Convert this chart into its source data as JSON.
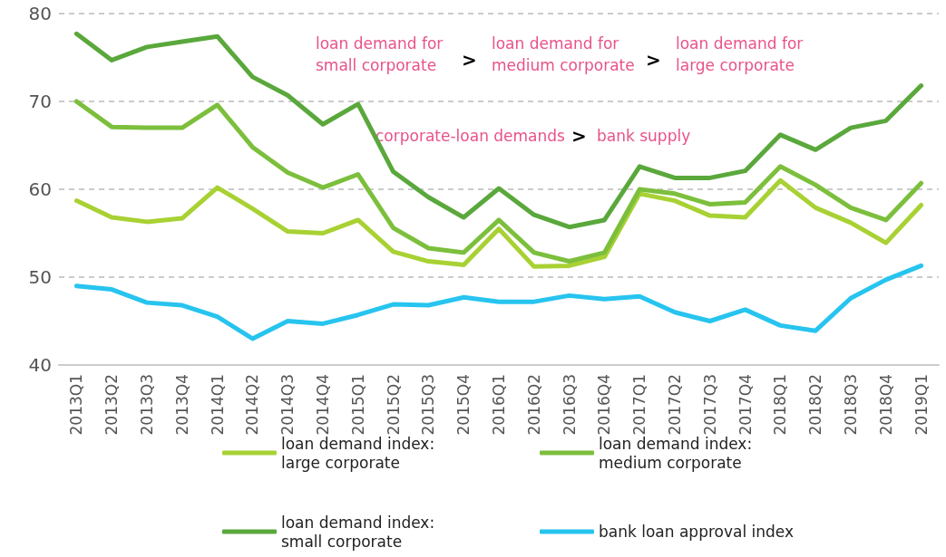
{
  "chart_data": {
    "type": "line",
    "categories": [
      "2013Q1",
      "2013Q2",
      "2013Q3",
      "2013Q4",
      "2014Q1",
      "2014Q2",
      "2014Q3",
      "2014Q4",
      "2015Q1",
      "2015Q2",
      "2015Q3",
      "2015Q4",
      "2016Q1",
      "2016Q2",
      "2016Q3",
      "2016Q4",
      "2017Q1",
      "2017Q2",
      "2017Q3",
      "2017Q4",
      "2018Q1",
      "2018Q2",
      "2018Q3",
      "2018Q4",
      "2019Q1"
    ],
    "series": [
      {
        "name": "loan demand index: large corporate",
        "color": "#a8d133",
        "values": [
          58.7,
          56.8,
          56.3,
          56.7,
          60.2,
          57.8,
          55.2,
          55.0,
          56.5,
          52.9,
          51.8,
          51.4,
          55.5,
          51.2,
          51.3,
          52.3,
          59.5,
          58.7,
          57.0,
          56.8,
          61.0,
          57.9,
          56.2,
          53.9,
          58.2
        ]
      },
      {
        "name": "loan demand index: medium corporate",
        "color": "#7cbf3c",
        "values": [
          70.0,
          67.1,
          67.0,
          67.0,
          69.6,
          64.8,
          61.9,
          60.2,
          61.7,
          55.6,
          53.3,
          52.8,
          56.5,
          52.8,
          51.8,
          52.8,
          60.0,
          59.5,
          58.3,
          58.5,
          62.6,
          60.5,
          57.9,
          56.5,
          60.7
        ]
      },
      {
        "name": "loan demand index: small corporate",
        "color": "#5aa83c",
        "values": [
          77.7,
          74.7,
          76.2,
          76.8,
          77.4,
          72.8,
          70.7,
          67.4,
          69.7,
          62.0,
          59.1,
          56.8,
          60.1,
          57.1,
          55.7,
          56.5,
          62.6,
          61.3,
          61.3,
          62.1,
          66.2,
          64.5,
          67.0,
          67.8,
          71.8
        ]
      },
      {
        "name": "bank loan approval index",
        "color": "#27c4ef",
        "values": [
          49.0,
          48.6,
          47.1,
          46.8,
          45.5,
          43.0,
          45.0,
          44.7,
          45.7,
          46.9,
          46.8,
          47.7,
          47.2,
          47.2,
          47.9,
          47.5,
          47.8,
          46.0,
          45.0,
          46.3,
          44.5,
          43.9,
          47.6,
          49.7,
          51.3
        ]
      }
    ],
    "ylim": [
      40,
      80
    ],
    "yticks": [
      40,
      50,
      60,
      70,
      80
    ],
    "grid": "y",
    "legend": "bottom",
    "marker": "none",
    "line_style": "solid",
    "annotations": [
      "loan demand for small corporate",
      ">",
      "loan demand for medium corporate",
      ">",
      "loan demand for large corporate",
      "corporate-loan demands",
      ">",
      "bank supply"
    ]
  }
}
